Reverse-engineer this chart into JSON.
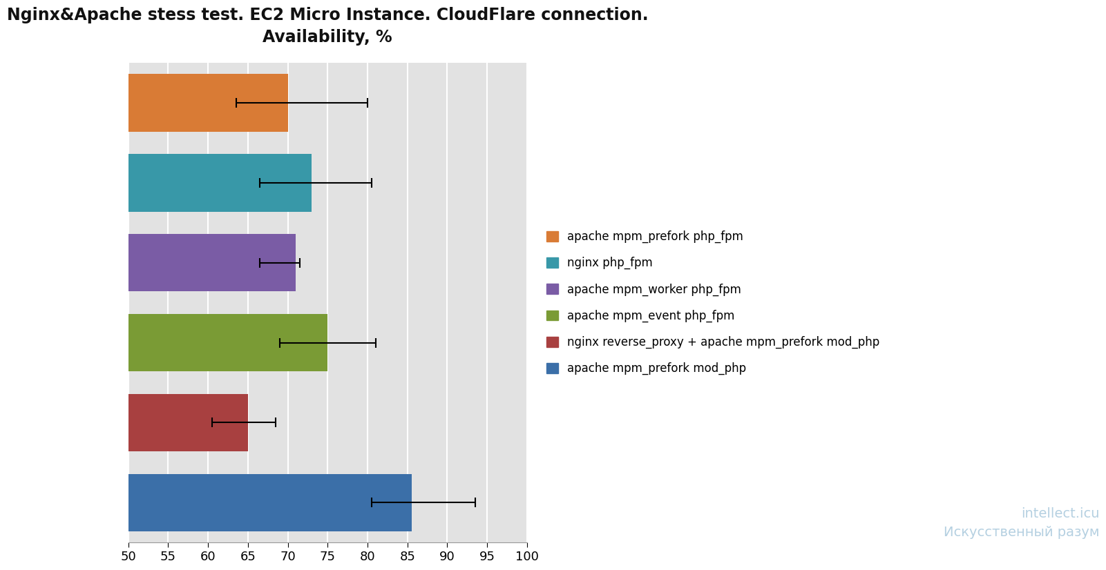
{
  "title": "Nginx&Apache stess test. EC2 Micro Instance. CloudFlare connection.\nAvailability, %",
  "title_fontsize": 17,
  "xlim": [
    50,
    100
  ],
  "xticks": [
    50,
    55,
    60,
    65,
    70,
    75,
    80,
    85,
    90,
    95,
    100
  ],
  "categories_top_to_bottom": [
    "apache mpm_prefork php_fpm",
    "nginx php_fpm",
    "apache mpm_worker php_fpm",
    "apache mpm_event php_fpm",
    "nginx reverse_proxy + apache mpm_prefork mod_php",
    "apache mpm_prefork mod_php"
  ],
  "values": [
    70.0,
    73.0,
    71.0,
    75.0,
    65.0,
    85.5
  ],
  "error_centers": [
    63.5,
    66.5,
    66.5,
    69.0,
    60.5,
    80.5
  ],
  "error_lows": [
    63.5,
    66.5,
    66.5,
    69.0,
    60.5,
    80.5
  ],
  "error_highs": [
    80.0,
    80.5,
    71.5,
    81.0,
    68.5,
    93.5
  ],
  "bar_colors": [
    "#D97B35",
    "#3898A8",
    "#7A5CA5",
    "#7A9B35",
    "#A84040",
    "#3B6FA8"
  ],
  "legend_labels": [
    "apache mpm_prefork php_fpm",
    "nginx php_fpm",
    "apache mpm_worker php_fpm",
    "apache mpm_event php_fpm",
    "nginx reverse_proxy + apache mpm_prefork mod_php",
    "apache mpm_prefork mod_php"
  ],
  "bar_height": 0.72,
  "plot_bg_color": "#E2E2E2",
  "figure_bg": "#FFFFFF",
  "grid_color": "#FFFFFF",
  "watermark_text": "intellect.icu\nИскусственный разум"
}
